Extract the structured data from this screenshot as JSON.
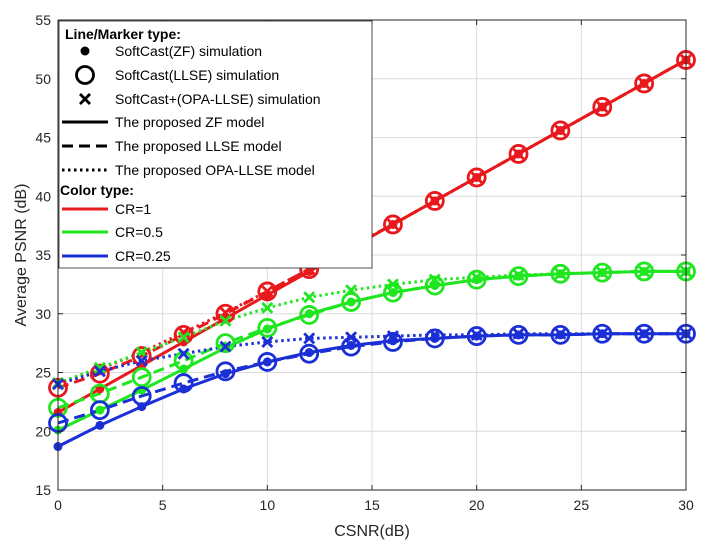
{
  "chart_data": {
    "type": "line",
    "xlabel": "CSNR(dB)",
    "ylabel": "Average PSNR (dB)",
    "xlim": [
      0,
      30
    ],
    "ylim": [
      15,
      55
    ],
    "xticks": [
      "0",
      "5",
      "10",
      "15",
      "20",
      "25",
      "30"
    ],
    "yticks": [
      "15",
      "20",
      "25",
      "30",
      "35",
      "40",
      "45",
      "50",
      "55"
    ],
    "grid": true,
    "legend_position": "top-left",
    "colors": {
      "cr1": "#e8191c",
      "cr05": "#1fe61f",
      "cr025": "#1b2fd6"
    },
    "legend": {
      "line_marker_header": "Line/Marker type:",
      "line_marker_items": [
        {
          "label": "SoftCast(ZF) simulation",
          "symbol": "dot"
        },
        {
          "label": "SoftCast(LLSE) simulation",
          "symbol": "circle"
        },
        {
          "label": "SoftCast+(OPA-LLSE) simulation",
          "symbol": "cross"
        },
        {
          "label": "The proposed ZF model",
          "symbol": "solid"
        },
        {
          "label": "The proposed LLSE model",
          "symbol": "dashed"
        },
        {
          "label": "The proposed OPA-LLSE model",
          "symbol": "dotted"
        }
      ],
      "color_header": "Color type:",
      "color_items": [
        {
          "label": "CR=1",
          "color": "#e8191c"
        },
        {
          "label": "CR=0.5",
          "color": "#1fe61f"
        },
        {
          "label": "CR=0.25",
          "color": "#1b2fd6"
        }
      ]
    },
    "x": [
      0,
      2,
      4,
      6,
      8,
      10,
      12,
      14,
      16,
      18,
      20,
      22,
      24,
      26,
      28,
      30
    ],
    "series": [
      {
        "group": "CR=1",
        "color": "#e8191c",
        "kind": "ZF",
        "style": "solid",
        "marker": "dot",
        "values": [
          21.6,
          23.6,
          25.6,
          27.6,
          29.6,
          31.6,
          33.6,
          35.6,
          37.6,
          39.6,
          41.6,
          43.6,
          45.6,
          47.6,
          49.6,
          51.6
        ]
      },
      {
        "group": "CR=1",
        "color": "#e8191c",
        "kind": "LLSE",
        "style": "dashed",
        "marker": "circle",
        "values": [
          23.7,
          24.9,
          26.4,
          28.2,
          30.0,
          31.9,
          33.8,
          35.7,
          37.6,
          39.6,
          41.6,
          43.6,
          45.6,
          47.6,
          49.6,
          51.6
        ]
      },
      {
        "group": "CR=1",
        "color": "#e8191c",
        "kind": "OPA-LLSE",
        "style": "dotted",
        "marker": "cross",
        "values": [
          24.1,
          25.3,
          26.7,
          28.4,
          30.1,
          31.9,
          33.8,
          35.7,
          37.6,
          39.6,
          41.6,
          43.6,
          45.6,
          47.6,
          49.6,
          51.6
        ]
      },
      {
        "group": "CR=0.5",
        "color": "#1fe61f",
        "kind": "ZF",
        "style": "solid",
        "marker": "dot",
        "values": [
          20.1,
          21.8,
          23.5,
          25.3,
          27.1,
          28.7,
          30.0,
          31.0,
          31.8,
          32.4,
          32.9,
          33.2,
          33.4,
          33.5,
          33.6,
          33.6
        ]
      },
      {
        "group": "CR=0.5",
        "color": "#1fe61f",
        "kind": "LLSE",
        "style": "dashed",
        "marker": "circle",
        "values": [
          22.0,
          23.2,
          24.6,
          26.0,
          27.5,
          28.8,
          29.9,
          31.0,
          31.8,
          32.4,
          32.9,
          33.2,
          33.4,
          33.5,
          33.6,
          33.6
        ]
      },
      {
        "group": "CR=0.5",
        "color": "#1fe61f",
        "kind": "OPA-LLSE",
        "style": "dotted",
        "marker": "cross",
        "values": [
          24.1,
          25.4,
          26.7,
          28.0,
          29.4,
          30.5,
          31.4,
          32.0,
          32.5,
          32.9,
          33.1,
          33.3,
          33.4,
          33.5,
          33.6,
          33.6
        ]
      },
      {
        "group": "CR=0.25",
        "color": "#1b2fd6",
        "kind": "ZF",
        "style": "solid",
        "marker": "dot",
        "values": [
          18.7,
          20.5,
          22.1,
          23.6,
          24.9,
          25.9,
          26.7,
          27.3,
          27.7,
          27.9,
          28.1,
          28.2,
          28.2,
          28.3,
          28.3,
          28.3
        ]
      },
      {
        "group": "CR=0.25",
        "color": "#1b2fd6",
        "kind": "LLSE",
        "style": "dashed",
        "marker": "circle",
        "values": [
          20.7,
          21.8,
          23.0,
          24.1,
          25.1,
          25.9,
          26.6,
          27.2,
          27.6,
          27.9,
          28.1,
          28.2,
          28.2,
          28.3,
          28.3,
          28.3
        ]
      },
      {
        "group": "CR=0.25",
        "color": "#1b2fd6",
        "kind": "OPA-LLSE",
        "style": "dotted",
        "marker": "cross",
        "values": [
          24.0,
          25.1,
          26.0,
          26.6,
          27.2,
          27.6,
          27.9,
          28.0,
          28.1,
          28.2,
          28.2,
          28.3,
          28.3,
          28.3,
          28.3,
          28.3
        ]
      }
    ]
  }
}
